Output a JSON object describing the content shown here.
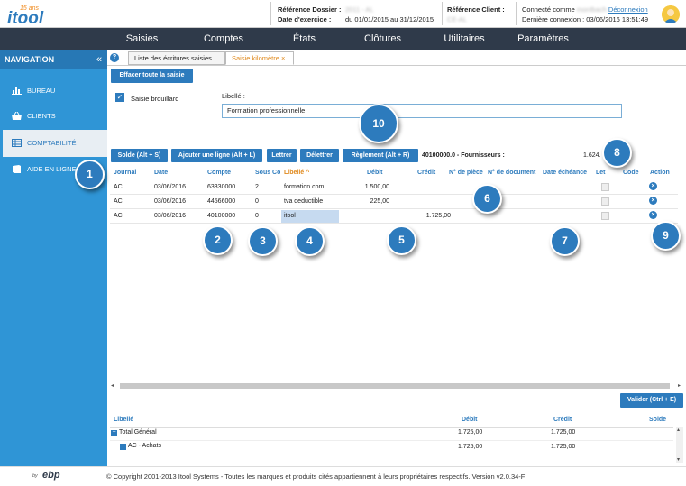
{
  "header": {
    "logo_text": "itool",
    "logo_badge": "15 ans",
    "ref_dossier_label": "Référence Dossier :",
    "ref_dossier_value": "2011 - AL",
    "date_exercice_label": "Date d'exercice :",
    "date_exercice_value": "du 01/01/2015 au 31/12/2015",
    "ref_client_label": "Référence Client :",
    "ref_client_value": "CE-AL",
    "connected_label": "Connecté comme",
    "connected_value": "montbach",
    "logout": "Déconnexion",
    "last_login": "Dernière connexion : 03/06/2016 13:51:49"
  },
  "nav": {
    "items": [
      "Saisies",
      "Comptes",
      "États",
      "Clôtures",
      "Utilitaires",
      "Paramètres"
    ]
  },
  "sidebar": {
    "title": "NAVIGATION",
    "collapse": "«",
    "items": [
      "BUREAU",
      "CLIENTS",
      "COMPTABILITÉ",
      "AIDE EN LIGNE"
    ]
  },
  "tabs": {
    "help": "?",
    "items": [
      "Liste des écritures saisies",
      "Saisie kilomètre"
    ],
    "close": "×"
  },
  "form": {
    "clear_button": "Effacer toute la saisie",
    "draft_label": "Saisie brouillard",
    "draft_checked": true,
    "libelle_label": "Libellé :",
    "libelle_value": "Formation professionnelle"
  },
  "toolbar": {
    "buttons": [
      "Solde (Alt + S)",
      "Ajouter une ligne (Alt + L)",
      "Lettrer",
      "Délettrer",
      "Règlement (Alt + R)"
    ],
    "account_info": "40100000.0 - Fournisseurs :",
    "balance": "1.624."
  },
  "table": {
    "columns": [
      "Journal",
      "Date",
      "Compte",
      "Sous Co",
      "Libellé",
      "Débit",
      "Crédit",
      "N° de pièce",
      "N° de document",
      "Date échéance",
      "Let",
      "Code",
      "Action"
    ],
    "sort_arrow": "^",
    "rows": [
      {
        "journal": "AC",
        "date": "03/06/2016",
        "compte": "63330000",
        "sous": "2",
        "libelle": "formation com...",
        "debit": "1.500,00",
        "credit": ""
      },
      {
        "journal": "AC",
        "date": "03/06/2016",
        "compte": "44566000",
        "sous": "0",
        "libelle": "tva deductible",
        "debit": "225,00",
        "credit": ""
      },
      {
        "journal": "AC",
        "date": "03/06/2016",
        "compte": "40100000",
        "sous": "0",
        "libelle": "itool",
        "debit": "",
        "credit": "1.725,00"
      }
    ]
  },
  "badges": [
    "1",
    "2",
    "3",
    "4",
    "5",
    "6",
    "7",
    "8",
    "9",
    "10"
  ],
  "validate_button": "Valider (Ctrl + E)",
  "summary": {
    "columns": [
      "Libellé",
      "Débit",
      "Crédit",
      "Solde"
    ],
    "rows": [
      {
        "label": "Total Général",
        "debit": "1.725,00",
        "credit": "1.725,00"
      },
      {
        "label": "AC - Achats",
        "debit": "1.725,00",
        "credit": "1.725,00"
      }
    ]
  },
  "footer": {
    "by": "by",
    "ebp": "ebp",
    "copyright": "© Copyright 2001-2013 Itool Systems - Toutes les marques et produits cités appartiennent à leurs propriétaires respectifs. Version v2.0.34-F"
  },
  "colors": {
    "primary": "#2d7bbd",
    "sidebar": "#2f95d6",
    "navbar": "#2f3a4a",
    "logo_orange": "#f08a1d"
  }
}
